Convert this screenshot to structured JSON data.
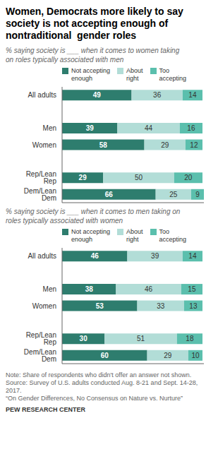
{
  "chart_data": [
    {
      "type": "bar",
      "title": "Women, Democrats more likely to say\nsociety is not accepting enough of\nnontraditional  gender roles",
      "subtitle": "% saying society is ___ when it comes to women taking\non roles typically associated with men",
      "orientation": "horizontal",
      "stacked": true,
      "data_labels": true,
      "tick_labels": "y",
      "legend": "top",
      "grid": false,
      "xlim": [
        0,
        100
      ],
      "categories": [
        "All adults",
        null,
        "Men",
        "Women",
        null,
        "Rep/Lean Rep",
        "Dem/Lean Dem"
      ],
      "series": [
        {
          "name": "Not accepting\nenough",
          "color": "#2e7d6e",
          "values": [
            49,
            null,
            39,
            58,
            null,
            29,
            66
          ]
        },
        {
          "name": "About\nright",
          "color": "#b2ddd7",
          "values": [
            36,
            null,
            44,
            29,
            null,
            50,
            25
          ]
        },
        {
          "name": "Too\naccepting",
          "color": "#5bbfad",
          "values": [
            14,
            null,
            16,
            12,
            null,
            20,
            9
          ]
        }
      ]
    },
    {
      "type": "bar",
      "subtitle": "% saying society is ___ when it comes to men taking on\nroles typically associated with women",
      "orientation": "horizontal",
      "stacked": true,
      "data_labels": true,
      "tick_labels": "y",
      "legend": "top",
      "grid": false,
      "xlim": [
        0,
        100
      ],
      "categories": [
        "All adults",
        null,
        "Men",
        "Women",
        null,
        "Rep/Lean Rep",
        "Dem/Lean Dem"
      ],
      "series": [
        {
          "name": "Not accepting\nenough",
          "color": "#2e7d6e",
          "values": [
            46,
            null,
            38,
            53,
            null,
            30,
            60
          ]
        },
        {
          "name": "About\nright",
          "color": "#b2ddd7",
          "values": [
            39,
            null,
            46,
            33,
            null,
            51,
            29
          ]
        },
        {
          "name": "Too\naccepting",
          "color": "#5bbfad",
          "values": [
            14,
            null,
            15,
            13,
            null,
            18,
            10
          ]
        }
      ],
      "annotations": [
        "Note: Share of respondents who didn't offer an answer not shown.\nSource: Survey of U.S. adults conducted Aug. 8-21 and Sept. 14-28,\n2017.\n“On Gender Differences, No Consensus on Nature vs. Nurture”",
        "PEW RESEARCH CENTER"
      ]
    }
  ]
}
